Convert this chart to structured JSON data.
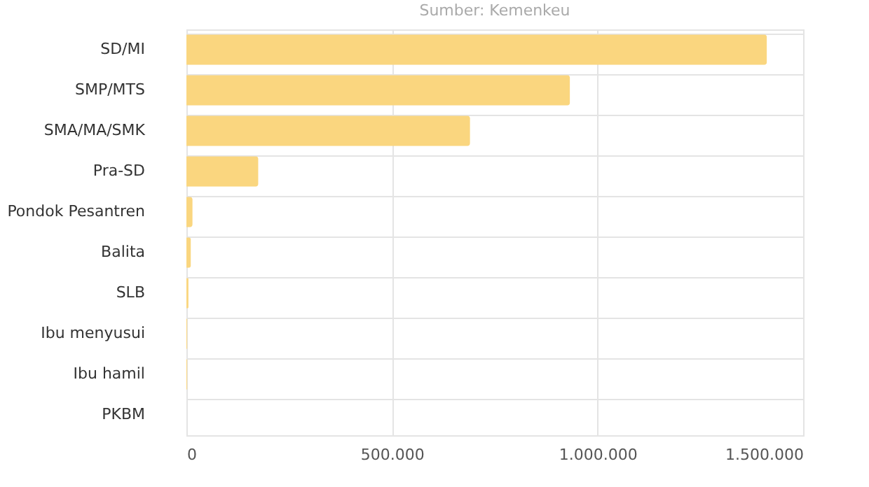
{
  "chart_data": {
    "type": "bar",
    "orientation": "horizontal",
    "subtitle": "Sumber: Kemenkeu",
    "categories": [
      "SD/MI",
      "SMP/MTS",
      "SMA/MA/SMK",
      "Pra-SD",
      "Pondok Pesantren",
      "Balita",
      "SLB",
      "Ibu menyusui",
      "Ibu hamil",
      "PKBM"
    ],
    "values": [
      1412000,
      933000,
      690000,
      175000,
      15000,
      11000,
      5000,
      2000,
      2000,
      null
    ],
    "color": "#fad67f",
    "xlim": [
      0,
      1500000
    ],
    "xticks": [
      0,
      {
        "value": 500000,
        "label": "500.000"
      },
      {
        "value": 1000000,
        "label": "1.000.000"
      },
      {
        "value": 1500000,
        "label": "1.500.000"
      }
    ],
    "grid": true
  }
}
